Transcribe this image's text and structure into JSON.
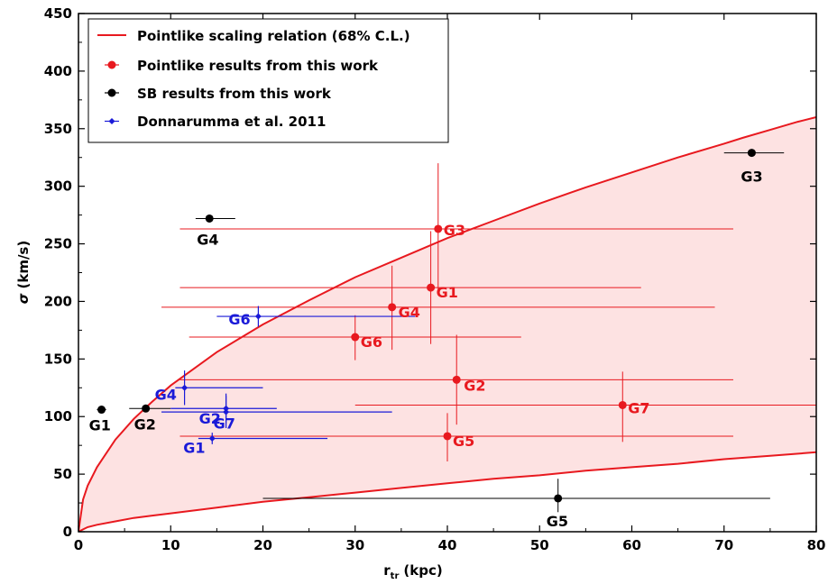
{
  "chart_data": {
    "type": "scatter",
    "xlabel_main": "r",
    "xlabel_sub": "tr",
    "xlabel_unit": "(kpc)",
    "ylabel_sym": "σ",
    "ylabel_unit": "(km/s)",
    "xlim": [
      0,
      80
    ],
    "ylim": [
      0,
      450
    ],
    "xticks": [
      0,
      10,
      20,
      30,
      40,
      50,
      60,
      70,
      80
    ],
    "yticks": [
      0,
      50,
      100,
      150,
      200,
      250,
      300,
      350,
      400,
      450
    ],
    "grid": false,
    "legend_position": "top-left",
    "legend": [
      {
        "label": "Pointlike scaling relation (68% C.L.)",
        "kind": "line",
        "color": "#e8191f"
      },
      {
        "label": "Pointlike results from this work",
        "kind": "dot",
        "color": "#e8191f"
      },
      {
        "label": "SB results from this work",
        "kind": "dot",
        "color": "#000000"
      },
      {
        "label": "Donnarumma et al. 2011",
        "kind": "dot-small",
        "color": "#1a1ad8"
      }
    ],
    "band": {
      "color": "#e8191f",
      "fill": "#fde2e2",
      "upper": [
        [
          0,
          0
        ],
        [
          0.5,
          28
        ],
        [
          1,
          40
        ],
        [
          2,
          56
        ],
        [
          4,
          80
        ],
        [
          6,
          98
        ],
        [
          8,
          113
        ],
        [
          10,
          127
        ],
        [
          15,
          156
        ],
        [
          20,
          180
        ],
        [
          25,
          201
        ],
        [
          30,
          221
        ],
        [
          35,
          238
        ],
        [
          40,
          255
        ],
        [
          45,
          270
        ],
        [
          50,
          285
        ],
        [
          55,
          299
        ],
        [
          60,
          312
        ],
        [
          65,
          325
        ],
        [
          70,
          337
        ],
        [
          72,
          342
        ],
        [
          75,
          349
        ],
        [
          78,
          356
        ],
        [
          80,
          360
        ]
      ],
      "lower": [
        [
          0,
          0
        ],
        [
          0.5,
          2
        ],
        [
          1,
          4
        ],
        [
          2,
          6
        ],
        [
          4,
          9
        ],
        [
          6,
          12
        ],
        [
          8,
          14
        ],
        [
          10,
          16
        ],
        [
          15,
          21
        ],
        [
          20,
          26
        ],
        [
          25,
          30
        ],
        [
          30,
          34
        ],
        [
          35,
          38
        ],
        [
          40,
          42
        ],
        [
          45,
          46
        ],
        [
          50,
          49
        ],
        [
          55,
          53
        ],
        [
          60,
          56
        ],
        [
          65,
          59
        ],
        [
          70,
          63
        ],
        [
          75,
          66
        ],
        [
          80,
          69
        ]
      ]
    },
    "series": [
      {
        "name": "Pointlike results from this work",
        "color": "#e8191f",
        "marker": "dot",
        "points": [
          {
            "label": "G1",
            "x": 38.2,
            "y": 212,
            "xerr": [
              11,
              61
            ],
            "yerr": [
              163,
              261
            ]
          },
          {
            "label": "G2",
            "x": 41.0,
            "y": 132,
            "xerr": [
              11,
              71
            ],
            "yerr": [
              93,
              171
            ]
          },
          {
            "label": "G3",
            "x": 39.0,
            "y": 263,
            "xerr": [
              11,
              71
            ],
            "yerr": [
              209,
              320
            ]
          },
          {
            "label": "G4",
            "x": 34.0,
            "y": 195,
            "xerr": [
              9,
              69
            ],
            "yerr": [
              158,
              231
            ]
          },
          {
            "label": "G5",
            "x": 40.0,
            "y": 83,
            "xerr": [
              11,
              71
            ],
            "yerr": [
              61,
              103
            ]
          },
          {
            "label": "G6",
            "x": 30.0,
            "y": 169,
            "xerr": [
              12,
              48
            ],
            "yerr": [
              149,
              188
            ]
          },
          {
            "label": "G7",
            "x": 59.0,
            "y": 110,
            "xerr": [
              30,
              80
            ],
            "yerr": [
              78,
              139
            ]
          }
        ]
      },
      {
        "name": "SB results from this work",
        "color": "#000000",
        "marker": "dot",
        "points": [
          {
            "label": "G1",
            "x": 2.5,
            "y": 106,
            "xerr": [
              2.0,
              3.0
            ],
            "yerr": [
              106,
              106
            ]
          },
          {
            "label": "G2",
            "x": 7.3,
            "y": 107,
            "xerr": [
              5.5,
              10.0
            ],
            "yerr": [
              107,
              107
            ]
          },
          {
            "label": "G3",
            "x": 73.0,
            "y": 329,
            "xerr": [
              70.0,
              76.5
            ],
            "yerr": [
              329,
              329
            ]
          },
          {
            "label": "G4",
            "x": 14.2,
            "y": 272,
            "xerr": [
              12.7,
              17.0
            ],
            "yerr": [
              272,
              272
            ]
          },
          {
            "label": "G5",
            "x": 52.0,
            "y": 29,
            "xerr": [
              20,
              75
            ],
            "yerr": [
              17,
              46
            ]
          }
        ]
      },
      {
        "name": "Donnarumma et al. 2011",
        "color": "#1a1ad8",
        "marker": "dot-small",
        "points": [
          {
            "label": "G1",
            "x": 14.5,
            "y": 81,
            "xerr": [
              13,
              27
            ],
            "yerr": [
              76,
              86
            ]
          },
          {
            "label": "G2",
            "x": 16.0,
            "y": 104,
            "xerr": [
              9,
              34
            ],
            "yerr": [
              90,
              118
            ]
          },
          {
            "label": "G4",
            "x": 11.5,
            "y": 125,
            "xerr": [
              10.5,
              20
            ],
            "yerr": [
              110,
              140
            ]
          },
          {
            "label": "G6",
            "x": 19.5,
            "y": 187,
            "xerr": [
              15,
              36.5
            ],
            "yerr": [
              178,
              196
            ]
          },
          {
            "label": "G7",
            "x": 16.0,
            "y": 107,
            "xerr": [
              10,
              21.5
            ],
            "yerr": [
              94,
              120
            ]
          }
        ]
      }
    ]
  }
}
